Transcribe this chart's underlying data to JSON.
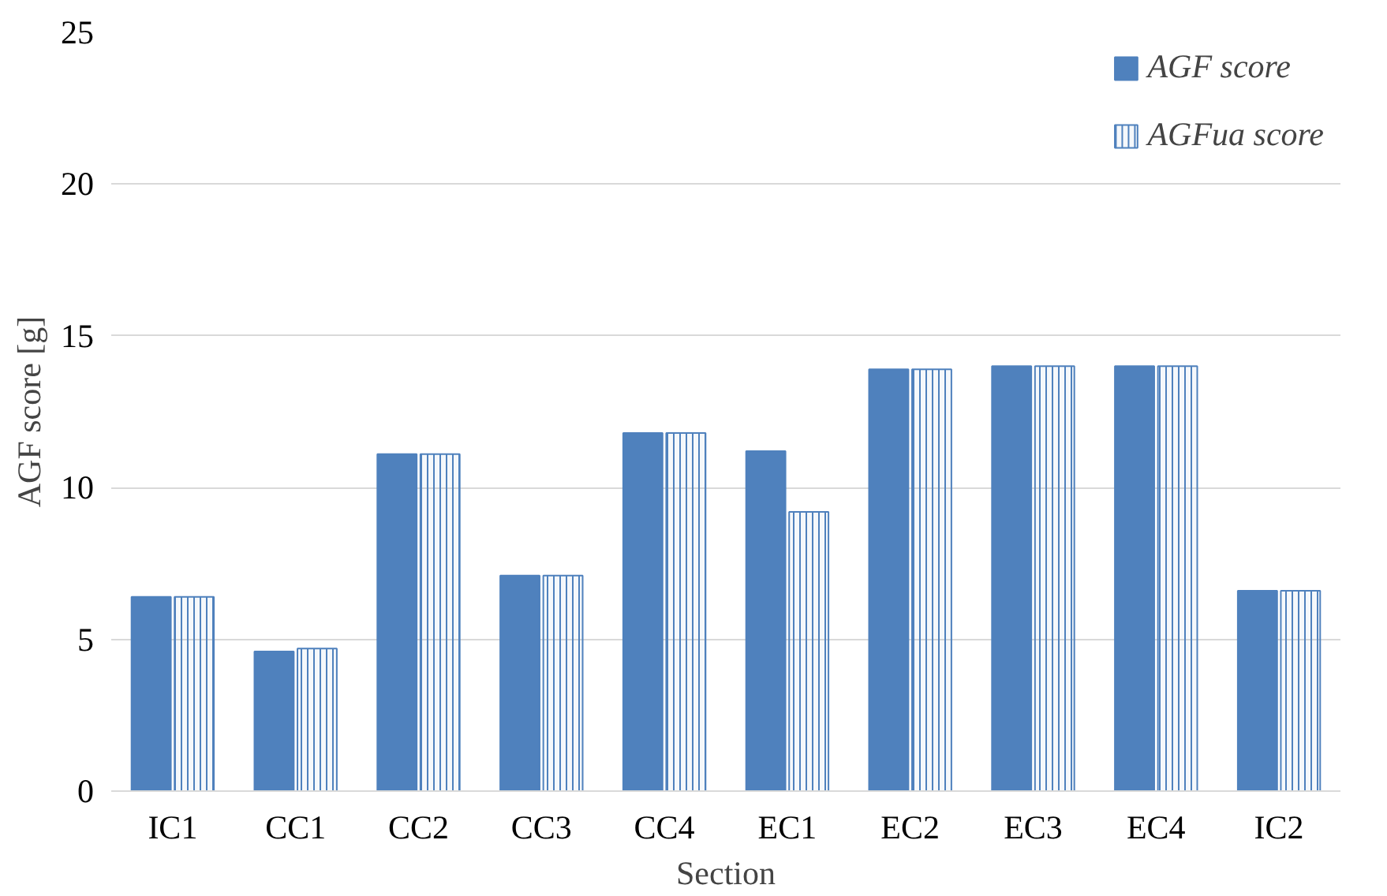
{
  "chart_data": {
    "type": "bar",
    "xlabel": "Section",
    "ylabel": "AGF score [g]",
    "categories": [
      "IC1",
      "CC1",
      "CC2",
      "CC3",
      "CC4",
      "EC1",
      "EC2",
      "EC3",
      "EC4",
      "IC2"
    ],
    "series": [
      {
        "name": "AGF score",
        "color": "#4f81bd",
        "values": [
          6.4,
          4.6,
          11.1,
          7.1,
          11.8,
          11.2,
          13.9,
          14.0,
          14.0,
          6.6
        ]
      },
      {
        "name": "AGFua score",
        "color": "#4f81bd",
        "values": [
          6.4,
          4.7,
          11.1,
          7.1,
          11.8,
          9.2,
          13.9,
          14.0,
          14.0,
          6.6
        ]
      }
    ],
    "ylim": [
      0,
      25
    ],
    "yticks": [
      0,
      5,
      10,
      15,
      20,
      25
    ],
    "grid": "y",
    "legend": "top right"
  }
}
